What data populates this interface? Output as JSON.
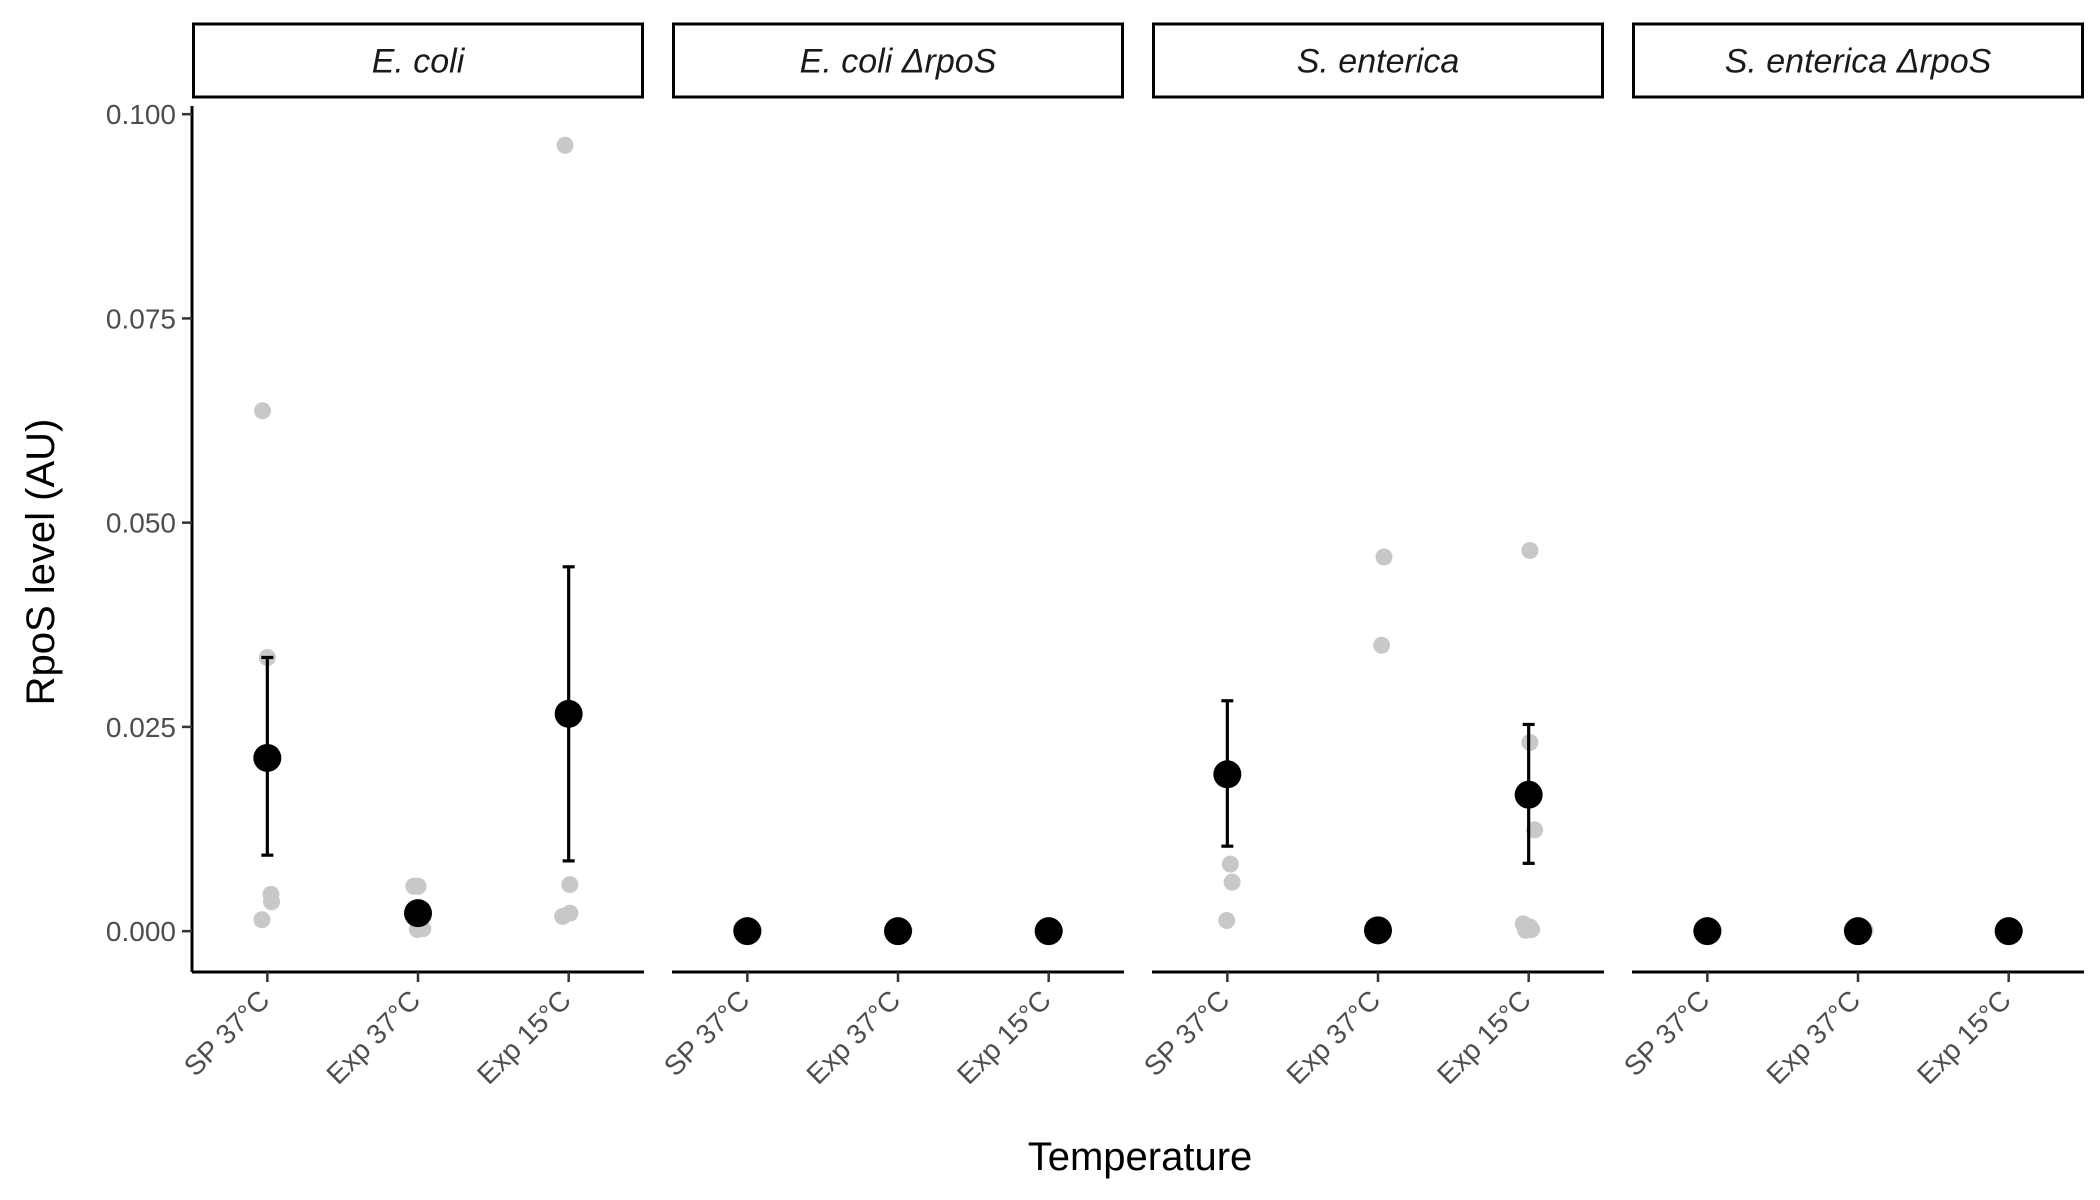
{
  "chart_data": {
    "type": "scatter",
    "xlabel": "Temperature",
    "ylabel": "RpoS level (AU)",
    "ylim": [
      -0.005,
      0.101
    ],
    "yticks": [
      0.0,
      0.025,
      0.05,
      0.075,
      0.1
    ],
    "ytick_labels": [
      "0.000",
      "0.025",
      "0.050",
      "0.075",
      "0.100"
    ],
    "categories": [
      "SP 37°C",
      "Exp 37°C",
      "Exp 15°C"
    ],
    "legend": "none",
    "grid": false,
    "colors": {
      "raw_points": "#c8c8c8",
      "mean_points": "#000000",
      "error_bars": "#000000",
      "strip_border": "#000000"
    },
    "facets": [
      {
        "label": "E. coli",
        "raw": [
          [
            -0.09,
            0.0014
          ],
          [
            -0.08,
            0.0637
          ],
          [
            0.0,
            0.0335
          ],
          [
            0.06,
            0.0045
          ],
          [
            0.07,
            0.0036
          ],
          [
            -0.07,
            0.0055
          ],
          [
            -0.02,
            0.0014
          ],
          [
            -0.01,
            0.0002
          ],
          [
            0.0,
            0.0055
          ],
          [
            0.08,
            0.0003
          ],
          [
            -0.1,
            0.0018
          ],
          [
            -0.06,
            0.0962
          ],
          [
            0.02,
            0.0022
          ],
          [
            0.02,
            0.0057
          ]
        ],
        "means": [
          0.0212,
          0.0022,
          0.0266
        ],
        "errors": [
          [
            0.0093,
            0.0335
          ],
          null,
          [
            0.0086,
            0.0446
          ]
        ]
      },
      {
        "label": "E. coli ΔrpoS",
        "raw": [
          [
            -0.1,
            0.0003
          ],
          [
            0.1,
            0.0001
          ],
          [
            -0.08,
            0.0002
          ],
          [
            0.1,
            0.0001
          ],
          [
            -0.08,
            0.0002
          ],
          [
            0.1,
            0.0001
          ]
        ],
        "means": [
          0.0,
          0.0,
          0.0
        ],
        "errors": [
          null,
          null,
          null
        ]
      },
      {
        "label": "S. enterica",
        "raw": [
          [
            -0.01,
            0.0013
          ],
          [
            0.05,
            0.0082
          ],
          [
            0.08,
            0.006
          ],
          [
            0.06,
            0.035
          ],
          [
            0.1,
            0.0458
          ],
          [
            -0.05,
            0.0001
          ],
          [
            0.05,
            0.0002
          ],
          [
            -0.09,
            0.0009
          ],
          [
            0.02,
            0.0005
          ],
          [
            0.02,
            0.0231
          ],
          [
            0.1,
            0.0124
          ],
          [
            0.02,
            0.0466
          ]
        ],
        "means": [
          0.0192,
          0.0001,
          0.0167
        ],
        "errors": [
          [
            0.0104,
            0.0282
          ],
          null,
          [
            0.0083,
            0.0253
          ]
        ]
      },
      {
        "label": "S. enterica ΔrpoS",
        "raw": [
          [
            -0.09,
            0.0002
          ],
          [
            0.1,
            0.0001
          ],
          [
            -0.1,
            0.0002
          ],
          [
            0.05,
            0.0001
          ],
          [
            0.12,
            0.0001
          ],
          [
            -0.05,
            0.0002
          ],
          [
            0.1,
            0.0001
          ]
        ],
        "means": [
          0.0,
          0.0,
          0.0
        ],
        "errors": [
          null,
          null,
          null
        ]
      }
    ]
  }
}
